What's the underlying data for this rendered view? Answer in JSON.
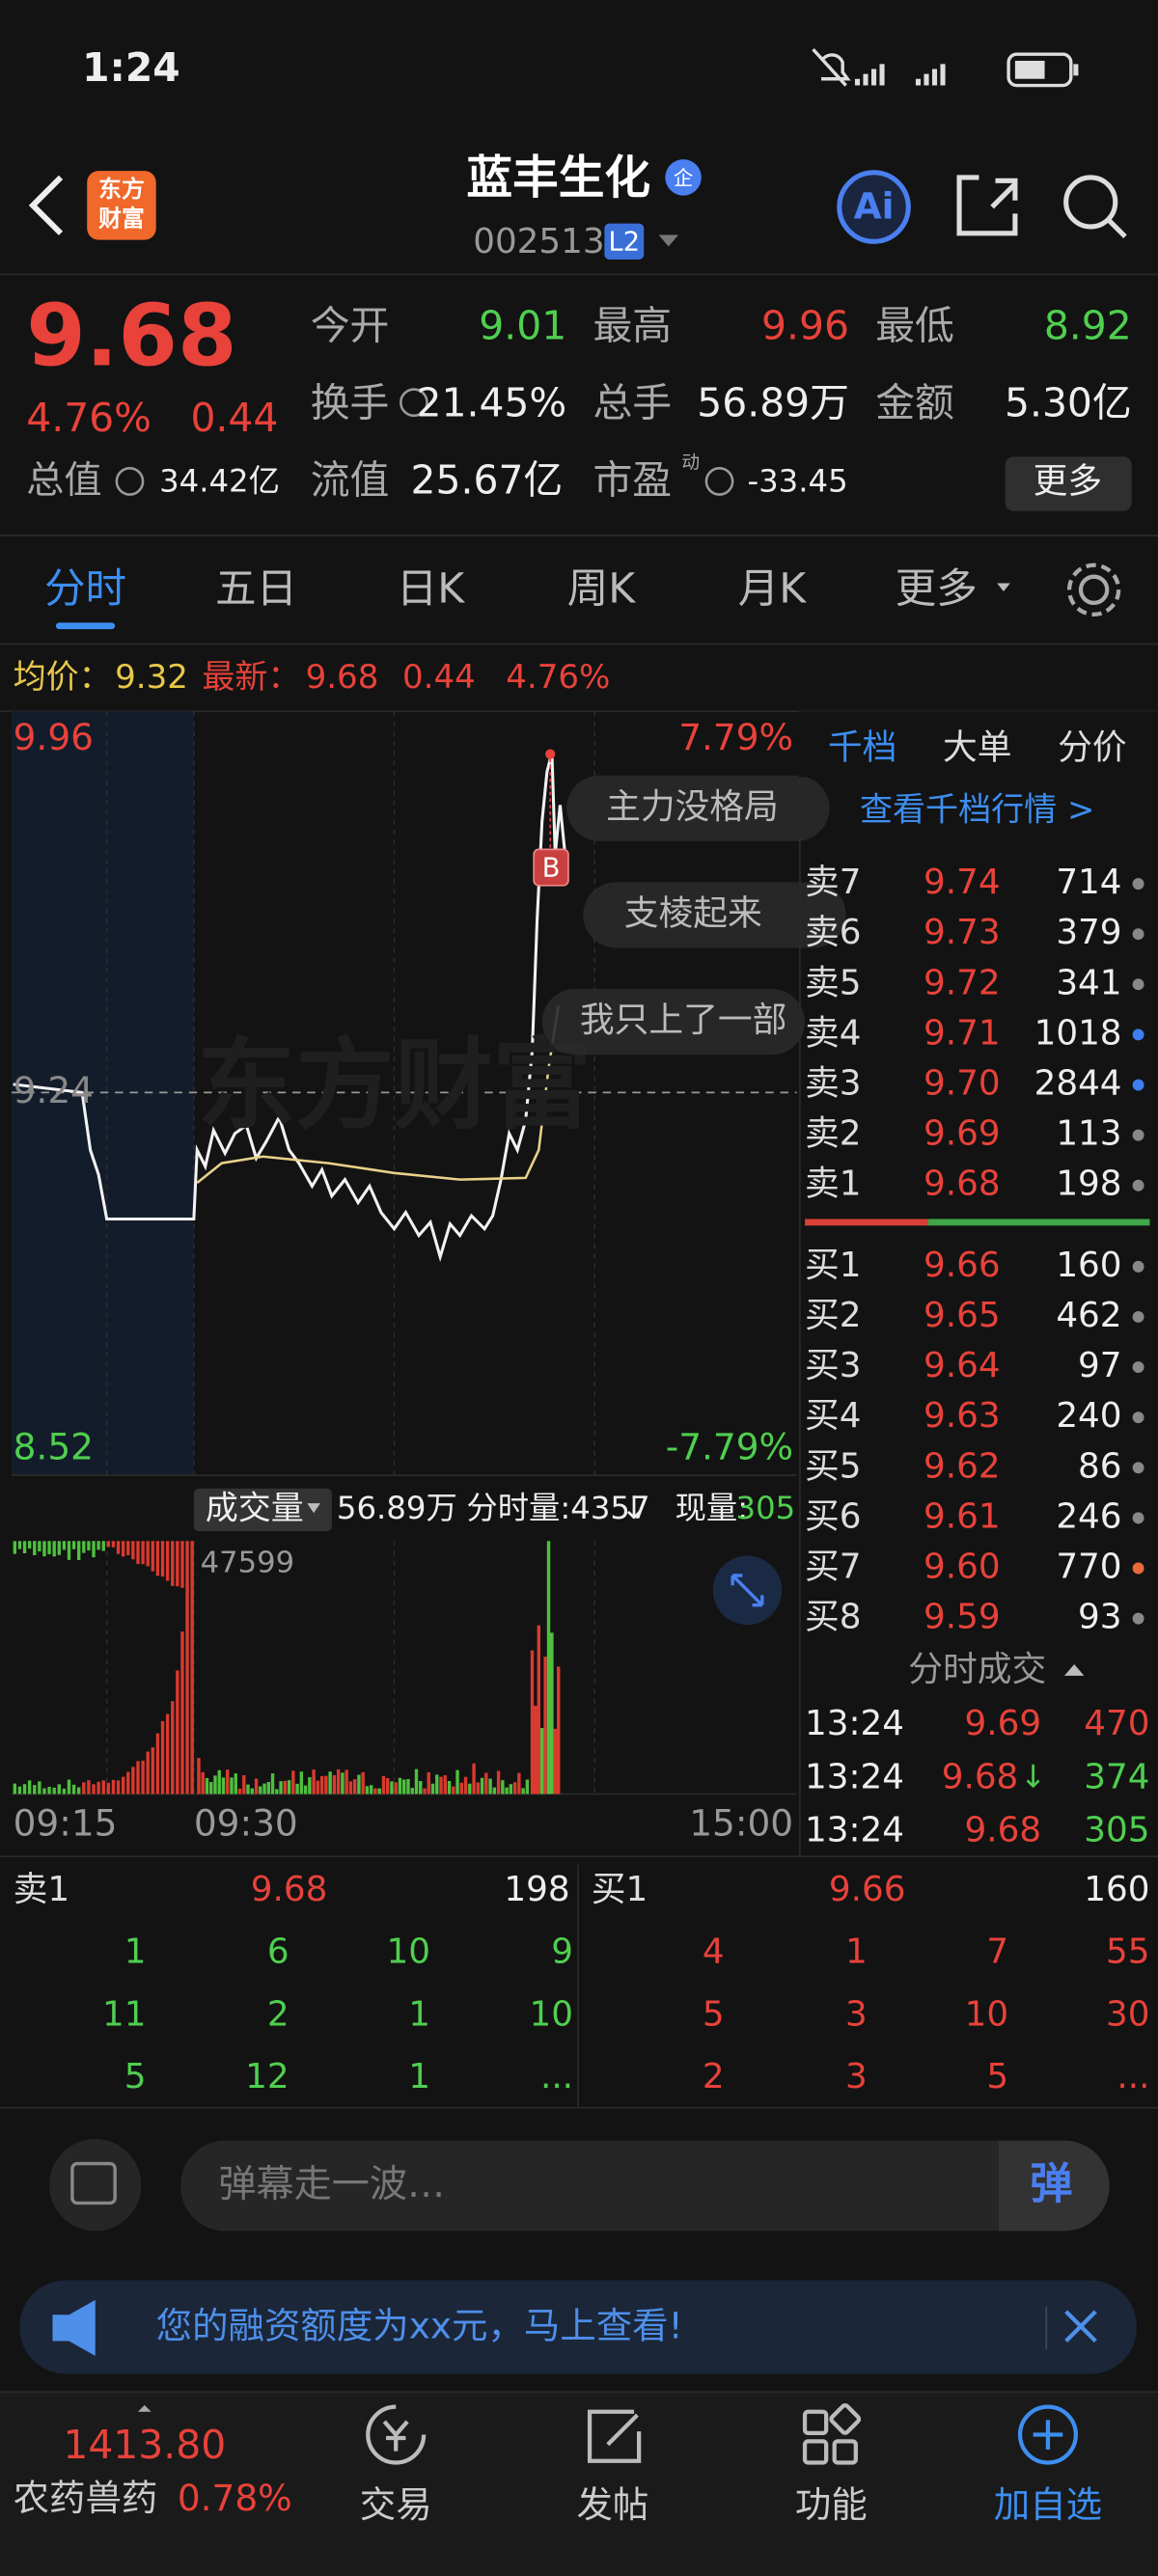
{
  "status_bar": {
    "time": "1:24"
  },
  "header": {
    "logo": [
      "东方",
      "财富"
    ],
    "title": "蓝丰生化",
    "badge": "企",
    "code": "002513",
    "level": "L2"
  },
  "quote": {
    "price": "9.68",
    "change_pct": "4.76%",
    "change": "0.44",
    "stats": [
      {
        "label": "今开",
        "value": "9.01"
      },
      {
        "label": "最高",
        "value": "9.96"
      },
      {
        "label": "最低",
        "value": "8.92"
      },
      {
        "label": "换手",
        "value": "21.45%"
      },
      {
        "label": "总手",
        "value": "56.89万"
      },
      {
        "label": "金额",
        "value": "5.30亿"
      }
    ],
    "market_cap": {
      "label": "总值",
      "value": "34.42亿"
    },
    "float_cap": {
      "label": "流值",
      "value": "25.67亿"
    },
    "pe": {
      "label": "市盈",
      "superscript": "动",
      "value": "-33.45"
    },
    "more": "更多"
  },
  "tabs": [
    "分时",
    "五日",
    "日K",
    "周K",
    "月K",
    "更多"
  ],
  "summary": {
    "avg_label": "均价：",
    "avg": "9.32",
    "latest_label": "最新：",
    "latest": "9.68",
    "change": "0.44",
    "change_pct": "4.76%"
  },
  "intraday": {
    "high": "9.96",
    "low": "8.52",
    "prev_close": "9.24",
    "high_pct": "7.79%",
    "low_pct": "-7.79%",
    "watermark": "东方财富",
    "marker": "B",
    "danmaku": [
      "主力没格局",
      "支棱起来",
      "我只上了一部"
    ]
  },
  "volume": {
    "label": "成交量",
    "total": "56.89万",
    "period": "分时量:4357",
    "period_arrow": "↓",
    "current_label": "现量:",
    "current": "305",
    "max": "47599",
    "times": [
      "09:15",
      "09:30",
      "15:00"
    ]
  },
  "order_book": {
    "tabs": [
      "千档",
      "大单",
      "分价"
    ],
    "link": "查看千档行情 >",
    "asks": [
      {
        "label": "卖7",
        "price": "9.74",
        "volume": "714"
      },
      {
        "label": "卖6",
        "price": "9.73",
        "volume": "379"
      },
      {
        "label": "卖5",
        "price": "9.72",
        "volume": "341"
      },
      {
        "label": "卖4",
        "price": "9.71",
        "volume": "1018"
      },
      {
        "label": "卖3",
        "price": "9.70",
        "volume": "2844"
      },
      {
        "label": "卖2",
        "price": "9.69",
        "volume": "113"
      },
      {
        "label": "卖1",
        "price": "9.68",
        "volume": "198"
      }
    ],
    "bids": [
      {
        "label": "买1",
        "price": "9.66",
        "volume": "160"
      },
      {
        "label": "买2",
        "price": "9.65",
        "volume": "462"
      },
      {
        "label": "买3",
        "price": "9.64",
        "volume": "97"
      },
      {
        "label": "买4",
        "price": "9.63",
        "volume": "240"
      },
      {
        "label": "买5",
        "price": "9.62",
        "volume": "86"
      },
      {
        "label": "买6",
        "price": "9.61",
        "volume": "246"
      },
      {
        "label": "买7",
        "price": "9.60",
        "volume": "770"
      },
      {
        "label": "买8",
        "price": "9.59",
        "volume": "93"
      }
    ],
    "trades_title": "分时成交",
    "trades": [
      {
        "time": "13:24",
        "price": "9.69",
        "volume": "470"
      },
      {
        "time": "13:24",
        "price": "9.68",
        "arrow": "↓",
        "volume": "374"
      },
      {
        "time": "13:24",
        "price": "9.68",
        "volume": "305"
      }
    ]
  },
  "level1": {
    "sell": {
      "label": "卖1",
      "price": "9.68",
      "volume": "198",
      "queue": [
        [
          "1",
          "6",
          "10",
          "9"
        ],
        [
          "11",
          "2",
          "1",
          "10"
        ],
        [
          "5",
          "12",
          "1",
          "..."
        ]
      ]
    },
    "buy": {
      "label": "买1",
      "price": "9.66",
      "volume": "160",
      "queue": [
        [
          "4",
          "1",
          "7",
          "55"
        ],
        [
          "5",
          "3",
          "10",
          "30"
        ],
        [
          "2",
          "3",
          "5",
          "..."
        ]
      ]
    }
  },
  "comment": {
    "placeholder": "弹幕走一波…",
    "button": "弹"
  },
  "banner": {
    "text": "您的融资额度为xx元，马上查看!"
  },
  "nav": {
    "index_value": "1413.80",
    "index_name": "农药兽药",
    "index_pct": "0.78%",
    "items": [
      "交易",
      "发帖",
      "功能",
      "加自选"
    ]
  }
}
